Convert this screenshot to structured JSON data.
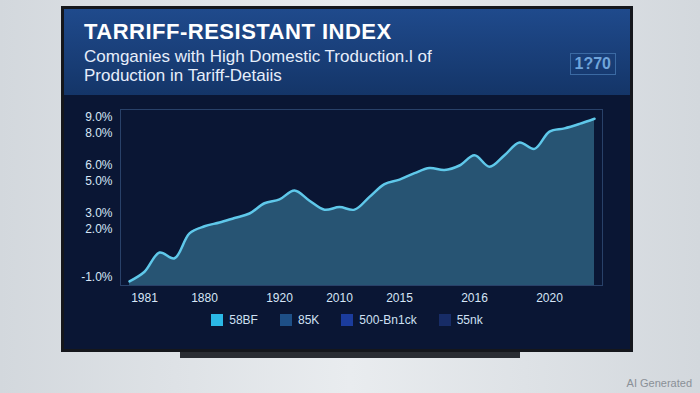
{
  "chart_data": {
    "type": "area",
    "title": "TARRIFF-RESISTANT INDEX",
    "subtitle": "Comganies with High Domestic Troduction.l of\nProduction in Tariff-Detaiis",
    "annotations": [
      "1?70",
      "AI Generated"
    ],
    "categories": [
      null,
      "1981",
      null,
      null,
      null,
      "1880",
      null,
      null,
      null,
      null,
      "1920",
      null,
      null,
      null,
      "2010",
      null,
      null,
      null,
      "2015",
      null,
      null,
      null,
      null,
      "2016",
      null,
      null,
      null,
      null,
      "2020",
      null,
      null,
      null
    ],
    "values": [
      -1.24,
      -0.64,
      0.56,
      0.2,
      1.76,
      2.2,
      2.44,
      2.72,
      3.0,
      3.64,
      3.88,
      4.44,
      3.8,
      3.24,
      3.4,
      3.24,
      4.04,
      4.84,
      5.12,
      5.52,
      5.84,
      5.72,
      6.0,
      6.64,
      5.92,
      6.64,
      7.44,
      7.04,
      8.12,
      8.32,
      8.6,
      8.92
    ],
    "color": "#5fc8ea",
    "ylim": [
      -1.5,
      9.5
    ],
    "yticks": [
      {
        "value": 9,
        "label": "9.0%"
      },
      {
        "value": 8,
        "label": "8.0%"
      },
      {
        "value": 6,
        "label": "6.0%"
      },
      {
        "value": 5,
        "label": "5.0%"
      },
      {
        "value": 3,
        "label": "3.0%"
      },
      {
        "value": 2,
        "label": "2.0%"
      },
      {
        "value": -1,
        "label": "-1.0%"
      }
    ],
    "grid": false,
    "legend": "bottom",
    "legend_entries": [
      {
        "name": "58BF",
        "color": "#2bb8e6"
      },
      {
        "name": "85K",
        "color": "#1e4f86"
      },
      {
        "name": "500-Bn1ck",
        "color": "#1b3c9c"
      },
      {
        "name": "55nk",
        "color": "#172c66"
      }
    ]
  }
}
